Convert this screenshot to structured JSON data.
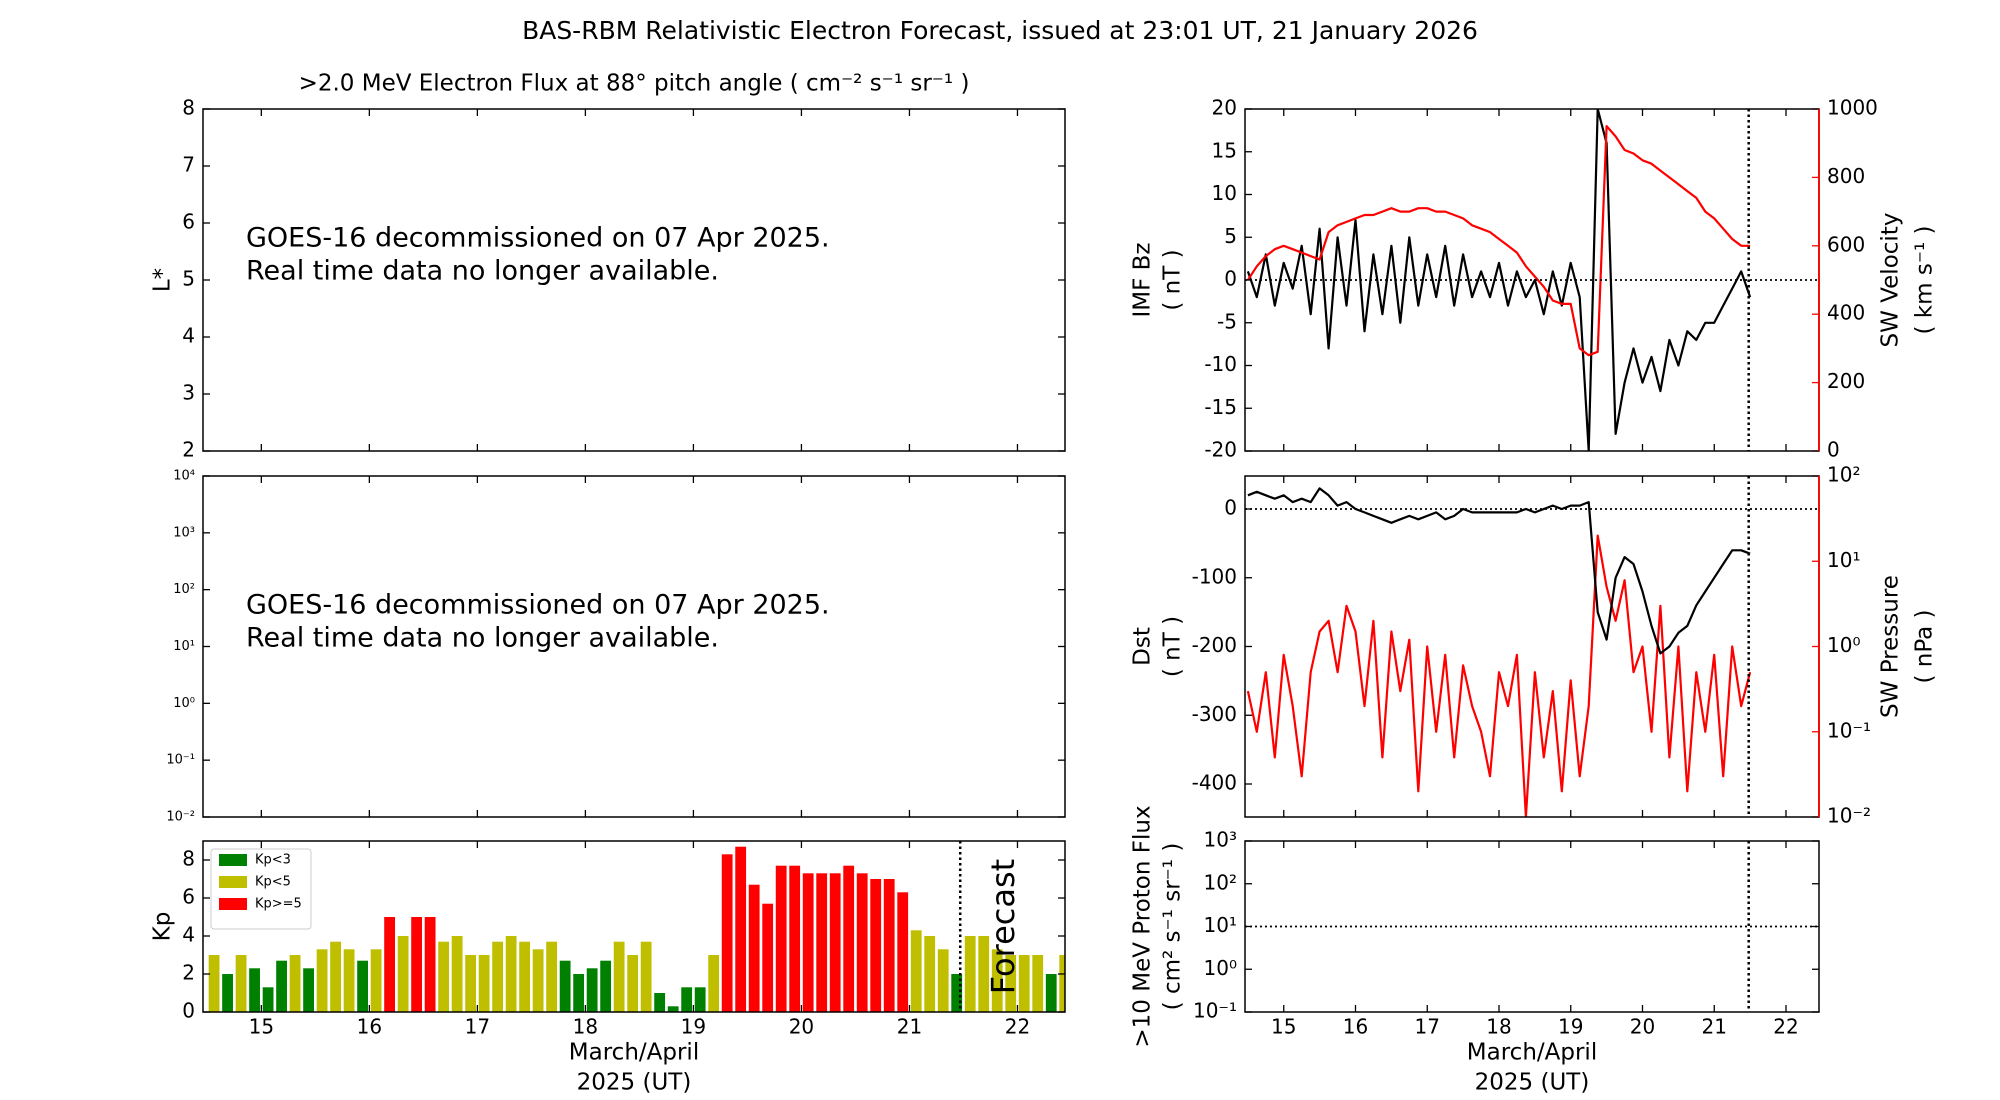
{
  "title": "BAS-RBM Relativistic Electron Forecast, issued at 23:01 UT, 21 January 2026",
  "chart_data": [
    {
      "type": "line",
      "title": ">2.0 MeV Electron Flux at 88° pitch angle ( cm⁻² s⁻¹ sr⁻¹ )",
      "ylabel": [
        "L*"
      ],
      "xlim": [
        14.46,
        22.44
      ],
      "xticks": [
        15,
        16,
        17,
        18,
        19,
        20,
        21,
        22
      ],
      "ylim": [
        2,
        8
      ],
      "yticks": [
        2,
        3,
        4,
        5,
        6,
        7,
        8
      ],
      "annotation": [
        "GOES-16 decommissioned on 07 Apr 2025.",
        "Real time data no longer available."
      ]
    },
    {
      "type": "line",
      "ylog": true,
      "xlim": [
        14.46,
        22.44
      ],
      "xticks": [
        15,
        16,
        17,
        18,
        19,
        20,
        21,
        22
      ],
      "ylim": [
        0.01,
        10000
      ],
      "yticks": [
        {
          "value": 0.01,
          "label": "10⁻²"
        },
        {
          "value": 0.1,
          "label": "10⁻¹"
        },
        {
          "value": 1,
          "label": "10⁰"
        },
        {
          "value": 10,
          "label": "10¹"
        },
        {
          "value": 100,
          "label": "10²"
        },
        {
          "value": 1000,
          "label": "10³"
        },
        {
          "value": 10000,
          "label": "10⁴"
        }
      ],
      "annotation": [
        "GOES-16 decommissioned on 07 Apr 2025.",
        "Real time data no longer available."
      ]
    },
    {
      "type": "bar",
      "ylabel": [
        "Kp"
      ],
      "xlabel": [
        "March/April",
        "2025 (UT)"
      ],
      "legend": "upper left",
      "xlim": [
        14.46,
        22.44
      ],
      "xticks": [
        15,
        16,
        17,
        18,
        19,
        20,
        21,
        22
      ],
      "ylim": [
        0,
        9
      ],
      "yticks": [
        0,
        2,
        4,
        6,
        8
      ],
      "vline": 21.47,
      "vline_annotation": "Forecast",
      "x": [
        14.5625,
        14.6875,
        14.8125,
        14.9375,
        15.0625,
        15.1875,
        15.3125,
        15.4375,
        15.5625,
        15.6875,
        15.8125,
        15.9375,
        16.0625,
        16.1875,
        16.3125,
        16.4375,
        16.5625,
        16.6875,
        16.8125,
        16.9375,
        17.0625,
        17.1875,
        17.3125,
        17.4375,
        17.5625,
        17.6875,
        17.8125,
        17.9375,
        18.0625,
        18.1875,
        18.3125,
        18.4375,
        18.5625,
        18.6875,
        18.8125,
        18.9375,
        19.0625,
        19.1875,
        19.3125,
        19.4375,
        19.5625,
        19.6875,
        19.8125,
        19.9375,
        20.0625,
        20.1875,
        20.3125,
        20.4375,
        20.5625,
        20.6875,
        20.8125,
        20.9375,
        21.0625,
        21.1875,
        21.3125,
        21.4375,
        21.5625,
        21.6875,
        21.8125,
        21.9375,
        22.0625,
        22.1875,
        22.3125,
        22.4375
      ],
      "series": [
        {
          "name": "Kp<3",
          "color": "#008000",
          "values": [
            null,
            2,
            null,
            2.3,
            1.3,
            2.7,
            null,
            2.3,
            null,
            null,
            null,
            2.7,
            null,
            null,
            null,
            null,
            null,
            null,
            null,
            null,
            null,
            null,
            null,
            null,
            null,
            null,
            2.7,
            2,
            2.3,
            2.7,
            null,
            null,
            null,
            1,
            0.3,
            1.3,
            1.3,
            null,
            null,
            null,
            null,
            null,
            null,
            null,
            null,
            null,
            null,
            null,
            null,
            null,
            null,
            null,
            null,
            null,
            null,
            2,
            null,
            null,
            null,
            null,
            null,
            null,
            2,
            null
          ]
        },
        {
          "name": "Kp<5",
          "color": "#bfbf00",
          "values": [
            3,
            null,
            3,
            null,
            null,
            null,
            3,
            null,
            3.3,
            3.7,
            3.3,
            null,
            3.3,
            null,
            4,
            null,
            null,
            3.7,
            4,
            3,
            3,
            3.7,
            4,
            3.7,
            3.3,
            3.7,
            null,
            null,
            null,
            null,
            3.7,
            3,
            3.7,
            null,
            null,
            null,
            null,
            3,
            null,
            null,
            null,
            null,
            null,
            null,
            null,
            null,
            null,
            null,
            null,
            null,
            null,
            null,
            4.3,
            4,
            3.3,
            null,
            4,
            4,
            3.3,
            3,
            3,
            3,
            null,
            3
          ]
        },
        {
          "name": "Kp>=5",
          "color": "#ff0000",
          "values": [
            null,
            null,
            null,
            null,
            null,
            null,
            null,
            null,
            null,
            null,
            null,
            null,
            null,
            5,
            null,
            5,
            5,
            null,
            null,
            null,
            null,
            null,
            null,
            null,
            null,
            null,
            null,
            null,
            null,
            null,
            null,
            null,
            null,
            null,
            null,
            null,
            null,
            null,
            8.3,
            8.7,
            6.7,
            5.7,
            7.7,
            7.7,
            7.3,
            7.3,
            7.3,
            7.7,
            7.3,
            7,
            7,
            6.3,
            null,
            null,
            null,
            null,
            null,
            null,
            null,
            null,
            null,
            null,
            null,
            null
          ]
        }
      ]
    },
    {
      "type": "line",
      "ylabel": [
        "IMF Bz",
        "( nT )"
      ],
      "y2label": [
        "SW Velocity",
        "( km s⁻¹ )"
      ],
      "xlim": [
        14.46,
        22.46
      ],
      "xticks": [
        15,
        16,
        17,
        18,
        19,
        20,
        21,
        22
      ],
      "ylim": [
        -20,
        20
      ],
      "yticks": [
        -20,
        -15,
        -10,
        -5,
        0,
        5,
        10,
        15,
        20
      ],
      "y2lim": [
        0,
        1000
      ],
      "y2ticks": [
        0,
        200,
        400,
        600,
        800,
        1000
      ],
      "hline": 0,
      "vline": 21.48,
      "x": [
        14.5,
        14.625,
        14.75,
        14.875,
        15,
        15.125,
        15.25,
        15.375,
        15.5,
        15.625,
        15.75,
        15.875,
        16,
        16.125,
        16.25,
        16.375,
        16.5,
        16.625,
        16.75,
        16.875,
        17,
        17.125,
        17.25,
        17.375,
        17.5,
        17.625,
        17.75,
        17.875,
        18,
        18.125,
        18.25,
        18.375,
        18.5,
        18.625,
        18.75,
        18.875,
        19,
        19.125,
        19.25,
        19.375,
        19.5,
        19.625,
        19.75,
        19.875,
        20,
        20.125,
        20.25,
        20.375,
        20.5,
        20.625,
        20.75,
        20.875,
        21,
        21.125,
        21.25,
        21.375,
        21.5
      ],
      "series": [
        {
          "name": "IMF Bz",
          "color": "#000000",
          "values": [
            1,
            -2,
            3,
            -3,
            2,
            -1,
            4,
            -4,
            6,
            -8,
            5,
            -3,
            7,
            -6,
            3,
            -4,
            4,
            -5,
            5,
            -3,
            3,
            -2,
            4,
            -3,
            3,
            -2,
            1,
            -2,
            2,
            -3,
            1,
            -2,
            0,
            -4,
            1,
            -3,
            2,
            -2,
            -20,
            20,
            16,
            -18,
            -12,
            -8,
            -12,
            -9,
            -13,
            -7,
            -10,
            -6,
            -7,
            -5,
            -5,
            -3,
            -1,
            1,
            -2
          ]
        },
        {
          "name": "SW Velocity",
          "color": "#ff0000",
          "axis": "y2",
          "values": [
            500,
            540,
            570,
            590,
            600,
            590,
            580,
            570,
            560,
            640,
            660,
            670,
            680,
            690,
            690,
            700,
            710,
            700,
            700,
            710,
            710,
            700,
            700,
            690,
            680,
            660,
            650,
            640,
            620,
            600,
            580,
            540,
            510,
            480,
            440,
            430,
            430,
            300,
            280,
            290,
            950,
            920,
            880,
            870,
            850,
            840,
            820,
            800,
            780,
            760,
            740,
            700,
            680,
            650,
            620,
            600,
            600
          ]
        }
      ]
    },
    {
      "type": "line",
      "ylabel": [
        "Dst",
        "( nT )"
      ],
      "y2label": [
        "SW Pressure",
        "( nPa )"
      ],
      "y2log": true,
      "xlim": [
        14.46,
        22.46
      ],
      "xticks": [
        15,
        16,
        17,
        18,
        19,
        20,
        21,
        22
      ],
      "ylim": [
        -448,
        48
      ],
      "yticks": [
        -400,
        -300,
        -200,
        -100,
        0
      ],
      "y2lim": [
        0.01,
        100
      ],
      "y2ticks": [
        {
          "value": 0.01,
          "label": "10⁻²"
        },
        {
          "value": 0.1,
          "label": "10⁻¹"
        },
        {
          "value": 1,
          "label": "10⁰"
        },
        {
          "value": 10,
          "label": "10¹"
        },
        {
          "value": 100,
          "label": "10²"
        }
      ],
      "hline": 0,
      "vline": 21.48,
      "x": [
        14.5,
        14.625,
        14.75,
        14.875,
        15,
        15.125,
        15.25,
        15.375,
        15.5,
        15.625,
        15.75,
        15.875,
        16,
        16.125,
        16.25,
        16.375,
        16.5,
        16.625,
        16.75,
        16.875,
        17,
        17.125,
        17.25,
        17.375,
        17.5,
        17.625,
        17.75,
        17.875,
        18,
        18.125,
        18.25,
        18.375,
        18.5,
        18.625,
        18.75,
        18.875,
        19,
        19.125,
        19.25,
        19.375,
        19.5,
        19.625,
        19.75,
        19.875,
        20,
        20.125,
        20.25,
        20.375,
        20.5,
        20.625,
        20.75,
        20.875,
        21,
        21.125,
        21.25,
        21.375,
        21.5
      ],
      "series": [
        {
          "name": "SW Pressure",
          "color": "#ff0000",
          "axis": "y2",
          "values": [
            0.3,
            0.1,
            0.5,
            0.05,
            0.8,
            0.2,
            0.03,
            0.5,
            1.5,
            2,
            0.5,
            3,
            1.5,
            0.2,
            2,
            0.05,
            1.5,
            0.3,
            1.2,
            0.02,
            1,
            0.1,
            0.8,
            0.05,
            0.6,
            0.2,
            0.1,
            0.03,
            0.5,
            0.2,
            0.8,
            0.01,
            0.5,
            0.05,
            0.3,
            0.02,
            0.4,
            0.03,
            0.2,
            20,
            5,
            2,
            6,
            0.5,
            1,
            0.1,
            3,
            0.05,
            1,
            0.02,
            0.5,
            0.1,
            0.8,
            0.03,
            1,
            0.2,
            0.5
          ]
        },
        {
          "name": "Dst",
          "color": "#000000",
          "values": [
            20,
            25,
            20,
            15,
            20,
            10,
            15,
            10,
            30,
            20,
            5,
            10,
            0,
            -5,
            -10,
            -15,
            -20,
            -15,
            -10,
            -15,
            -10,
            -5,
            -15,
            -10,
            0,
            -5,
            -5,
            -5,
            -5,
            -5,
            -5,
            0,
            -5,
            0,
            5,
            0,
            5,
            5,
            10,
            -150,
            -190,
            -100,
            -70,
            -80,
            -120,
            -170,
            -210,
            -200,
            -180,
            -170,
            -140,
            -120,
            -100,
            -80,
            -60,
            -60,
            -65
          ]
        }
      ]
    },
    {
      "type": "line",
      "ylabel": [
        ">10 MeV Proton Flux",
        "( cm² s⁻¹ sr⁻¹ )"
      ],
      "xlabel": [
        "March/April",
        "2025 (UT)"
      ],
      "ylog": true,
      "xlim": [
        14.46,
        22.46
      ],
      "xticks": [
        15,
        16,
        17,
        18,
        19,
        20,
        21,
        22
      ],
      "ylim": [
        0.1,
        1000
      ],
      "yticks": [
        {
          "value": 0.1,
          "label": "10⁻¹"
        },
        {
          "value": 1,
          "label": "10⁰"
        },
        {
          "value": 10,
          "label": "10¹"
        },
        {
          "value": 100,
          "label": "10²"
        },
        {
          "value": 1000,
          "label": "10³"
        }
      ],
      "hline": 10,
      "vline": 21.48
    }
  ]
}
